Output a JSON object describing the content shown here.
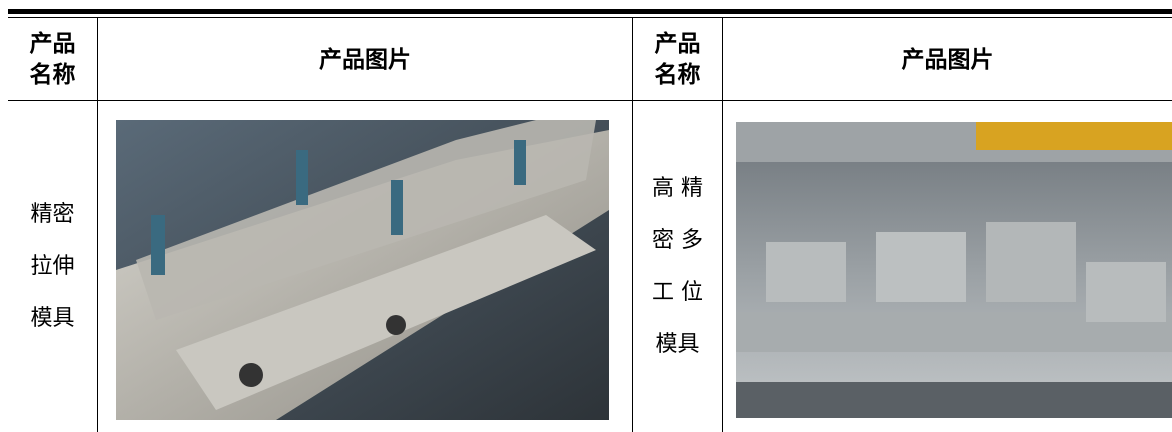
{
  "table": {
    "header": [
      [
        "产品",
        "名称"
      ],
      [
        "产品图片"
      ],
      [
        "产品",
        "名称"
      ],
      [
        "产品图片"
      ]
    ],
    "rows": [
      [
        [
          "精密",
          "拉伸",
          "模具"
        ],
        [
          "高 精",
          "密 多",
          "工 位",
          "模具"
        ]
      ]
    ]
  }
}
